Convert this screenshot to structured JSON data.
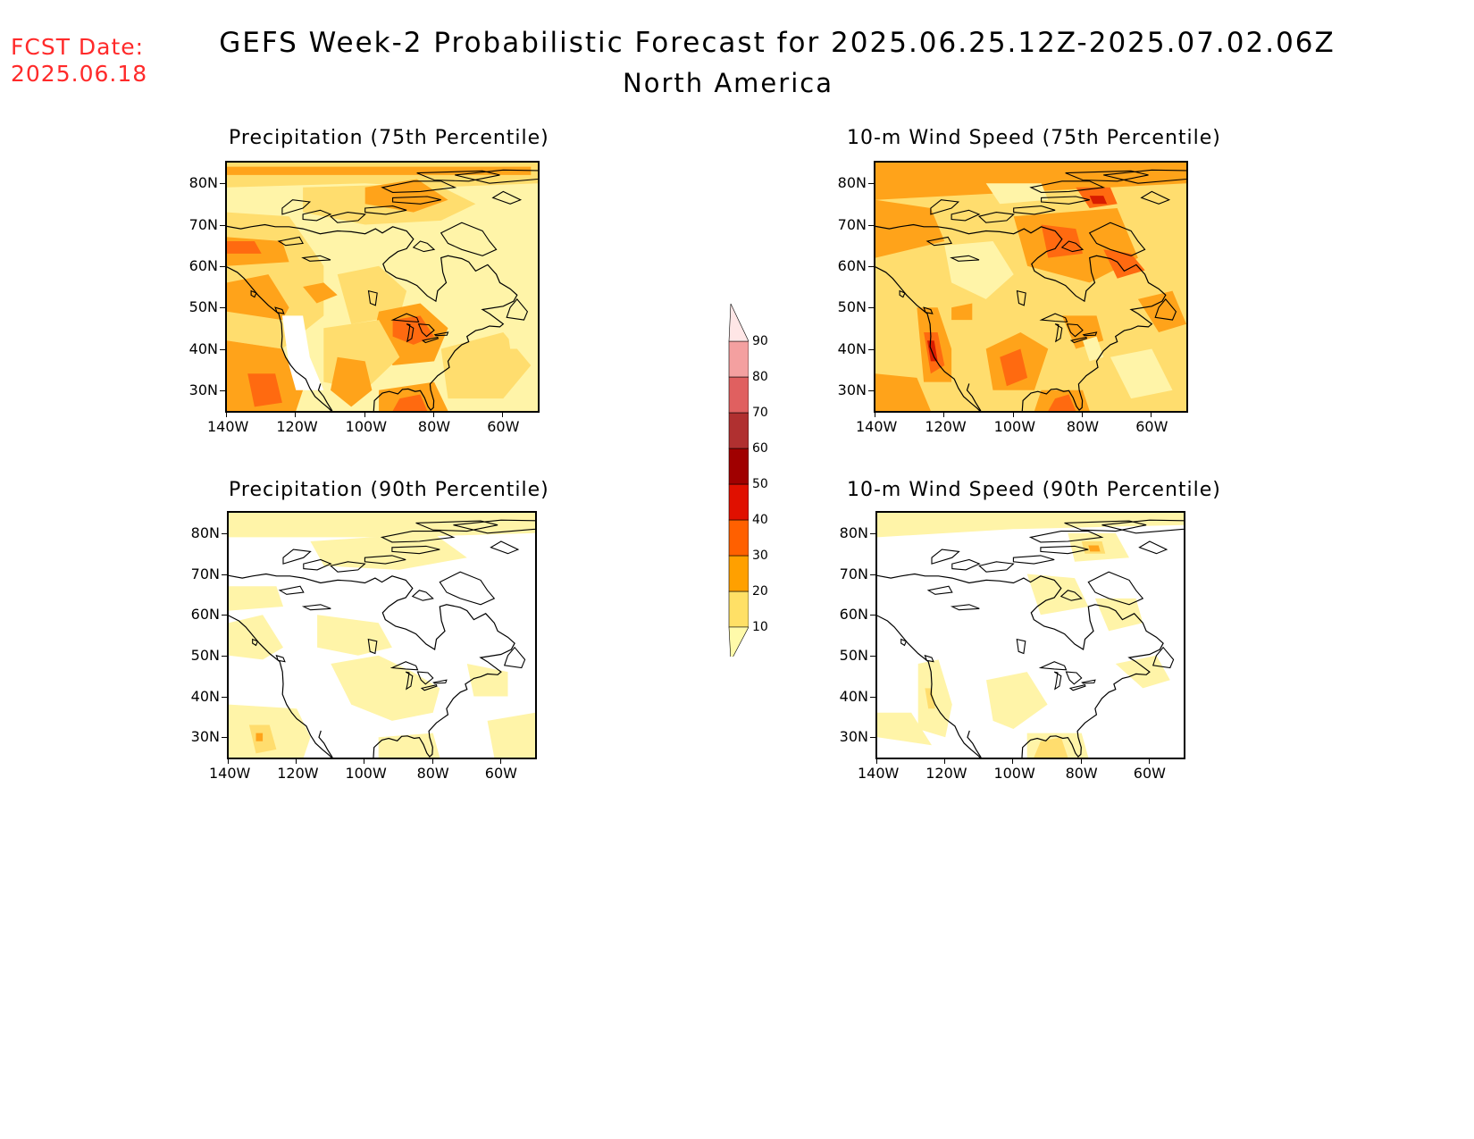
{
  "header": {
    "fcst_label": "FCST Date:",
    "fcst_date": "2025.06.18",
    "title": "GEFS Week-2 Probabilistic Forecast for 2025.06.25.12Z-2025.07.02.06Z",
    "subtitle": "North America"
  },
  "axes": {
    "lon_labels": [
      "140W",
      "120W",
      "100W",
      "80W",
      "60W"
    ],
    "lat_labels": [
      "80N",
      "70N",
      "60N",
      "50N",
      "40N",
      "30N"
    ]
  },
  "panels": [
    {
      "title": "Precipitation (75th Percentile)",
      "variable": "precipitation",
      "percentile": 75
    },
    {
      "title": "10-m Wind Speed (75th Percentile)",
      "variable": "wind",
      "percentile": 75
    },
    {
      "title": "Precipitation (90th Percentile)",
      "variable": "precipitation",
      "percentile": 90
    },
    {
      "title": "10-m Wind Speed (90th Percentile)",
      "variable": "wind",
      "percentile": 90
    }
  ],
  "colorbar": {
    "labels": [
      "10",
      "20",
      "30",
      "40",
      "50",
      "60",
      "70",
      "80",
      "90"
    ],
    "colors": [
      "#fffaaa",
      "#ffe066",
      "#ffa000",
      "#ff6000",
      "#e01000",
      "#a00000",
      "#b03030",
      "#e06060",
      "#f4a0a0",
      "#ffe6e6"
    ]
  },
  "chart_data": {
    "type": "heatmap",
    "value_unit": "probability (%)",
    "levels": [
      10,
      20,
      30,
      40,
      50,
      60,
      70,
      80,
      90
    ],
    "lon_range": [
      -140,
      -50
    ],
    "lat_range": [
      25,
      85
    ]
  }
}
